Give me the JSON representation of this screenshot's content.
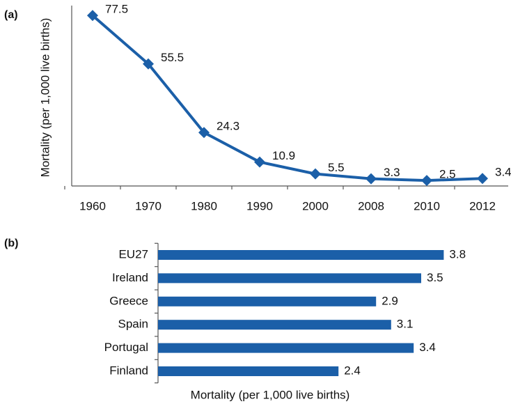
{
  "chart_data": [
    {
      "type": "line",
      "label": "(a)",
      "ylabel": "Mortality (per 1,000 live births)",
      "categories": [
        "1960",
        "1970",
        "1980",
        "1990",
        "2000",
        "2008",
        "2010",
        "2012"
      ],
      "values": [
        77.5,
        55.5,
        24.3,
        10.9,
        5.5,
        3.3,
        2.5,
        3.4
      ],
      "color": "#1b5fa8",
      "ylim": [
        0,
        82
      ]
    },
    {
      "type": "hbar",
      "label": "(b)",
      "xlabel": "Mortality (per 1,000 live births)",
      "categories": [
        "EU27",
        "Ireland",
        "Greece",
        "Spain",
        "Portugal",
        "Finland"
      ],
      "values": [
        3.8,
        3.5,
        2.9,
        3.1,
        3.4,
        2.4
      ],
      "color": "#1b5fa8",
      "xlim": [
        0,
        4
      ]
    }
  ]
}
